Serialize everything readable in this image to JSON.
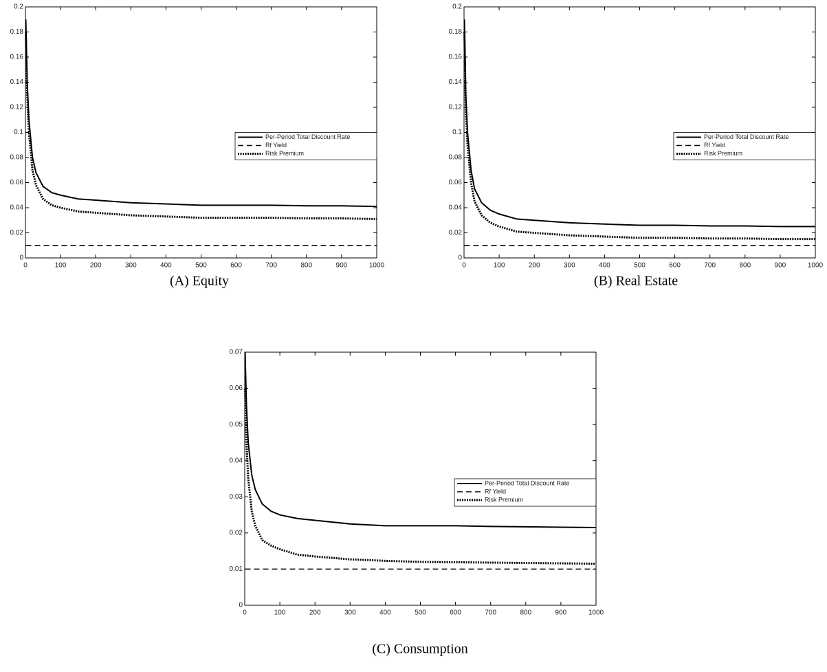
{
  "chart_data": [
    {
      "type": "line",
      "caption": "(A) Equity",
      "x": [
        1,
        5,
        10,
        20,
        30,
        50,
        75,
        100,
        150,
        200,
        300,
        400,
        500,
        600,
        700,
        800,
        900,
        1000
      ],
      "series": [
        {
          "name": "Per-Period Total Discount Rate",
          "color": "#000000",
          "dash": "solid",
          "values": [
            0.19,
            0.14,
            0.11,
            0.08,
            0.068,
            0.057,
            0.052,
            0.05,
            0.047,
            0.046,
            0.044,
            0.043,
            0.042,
            0.042,
            0.042,
            0.0415,
            0.0415,
            0.041
          ]
        },
        {
          "name": "Rf Yield",
          "color": "#000000",
          "dash": "dashed",
          "values": [
            0.01,
            0.01,
            0.01,
            0.01,
            0.01,
            0.01,
            0.01,
            0.01,
            0.01,
            0.01,
            0.01,
            0.01,
            0.01,
            0.01,
            0.01,
            0.01,
            0.01,
            0.01
          ]
        },
        {
          "name": "Risk Premium",
          "color": "#000000",
          "dash": "dotted",
          "values": [
            0.18,
            0.13,
            0.1,
            0.07,
            0.058,
            0.047,
            0.042,
            0.04,
            0.037,
            0.036,
            0.034,
            0.033,
            0.032,
            0.032,
            0.032,
            0.0315,
            0.0315,
            0.031
          ]
        }
      ],
      "xlim": [
        0,
        1000
      ],
      "xticks": [
        0,
        100,
        200,
        300,
        400,
        500,
        600,
        700,
        800,
        900,
        1000
      ],
      "ylim": [
        0,
        0.2
      ],
      "yticks": [
        0,
        0.02,
        0.04,
        0.06,
        0.08,
        0.1,
        0.12,
        0.14,
        0.16,
        0.18,
        0.2
      ],
      "grid": false,
      "legend": "right"
    },
    {
      "type": "line",
      "caption": "(B) Real Estate",
      "x": [
        1,
        5,
        10,
        20,
        30,
        50,
        75,
        100,
        150,
        200,
        300,
        400,
        500,
        600,
        700,
        800,
        900,
        1000
      ],
      "series": [
        {
          "name": "Per-Period Total Discount Rate",
          "color": "#000000",
          "dash": "solid",
          "values": [
            0.19,
            0.13,
            0.1,
            0.07,
            0.055,
            0.044,
            0.038,
            0.035,
            0.031,
            0.03,
            0.028,
            0.027,
            0.026,
            0.026,
            0.0255,
            0.0255,
            0.025,
            0.025
          ]
        },
        {
          "name": "Rf Yield",
          "color": "#000000",
          "dash": "dashed",
          "values": [
            0.01,
            0.01,
            0.01,
            0.01,
            0.01,
            0.01,
            0.01,
            0.01,
            0.01,
            0.01,
            0.01,
            0.01,
            0.01,
            0.01,
            0.01,
            0.01,
            0.01,
            0.01
          ]
        },
        {
          "name": "Risk Premium",
          "color": "#000000",
          "dash": "dotted",
          "values": [
            0.18,
            0.12,
            0.09,
            0.06,
            0.045,
            0.034,
            0.028,
            0.025,
            0.021,
            0.02,
            0.018,
            0.017,
            0.016,
            0.016,
            0.0155,
            0.0155,
            0.015,
            0.015
          ]
        }
      ],
      "xlim": [
        0,
        1000
      ],
      "xticks": [
        0,
        100,
        200,
        300,
        400,
        500,
        600,
        700,
        800,
        900,
        1000
      ],
      "ylim": [
        0,
        0.2
      ],
      "yticks": [
        0,
        0.02,
        0.04,
        0.06,
        0.08,
        0.1,
        0.12,
        0.14,
        0.16,
        0.18,
        0.2
      ],
      "grid": false,
      "legend": "right"
    },
    {
      "type": "line",
      "caption": "(C) Consumption",
      "x": [
        1,
        5,
        10,
        20,
        30,
        50,
        75,
        100,
        150,
        200,
        300,
        400,
        500,
        600,
        700,
        800,
        900,
        1000
      ],
      "series": [
        {
          "name": "Per-Period Total Discount Rate",
          "color": "#000000",
          "dash": "solid",
          "values": [
            0.07,
            0.055,
            0.045,
            0.036,
            0.032,
            0.028,
            0.026,
            0.025,
            0.024,
            0.0235,
            0.0225,
            0.022,
            0.022,
            0.022,
            0.0218,
            0.0217,
            0.0216,
            0.0215
          ]
        },
        {
          "name": "Rf Yield",
          "color": "#000000",
          "dash": "dashed",
          "values": [
            0.01,
            0.01,
            0.01,
            0.01,
            0.01,
            0.01,
            0.01,
            0.01,
            0.01,
            0.01,
            0.01,
            0.01,
            0.01,
            0.01,
            0.01,
            0.01,
            0.01,
            0.01
          ]
        },
        {
          "name": "Risk Premium",
          "color": "#000000",
          "dash": "dotted",
          "values": [
            0.06,
            0.045,
            0.035,
            0.026,
            0.022,
            0.018,
            0.0165,
            0.0155,
            0.014,
            0.0135,
            0.0127,
            0.0123,
            0.012,
            0.0119,
            0.0118,
            0.0117,
            0.0116,
            0.0115
          ]
        }
      ],
      "xlim": [
        0,
        1000
      ],
      "xticks": [
        0,
        100,
        200,
        300,
        400,
        500,
        600,
        700,
        800,
        900,
        1000
      ],
      "ylim": [
        0,
        0.07
      ],
      "yticks": [
        0,
        0.01,
        0.02,
        0.03,
        0.04,
        0.05,
        0.06,
        0.07
      ],
      "grid": false,
      "legend": "right"
    }
  ]
}
